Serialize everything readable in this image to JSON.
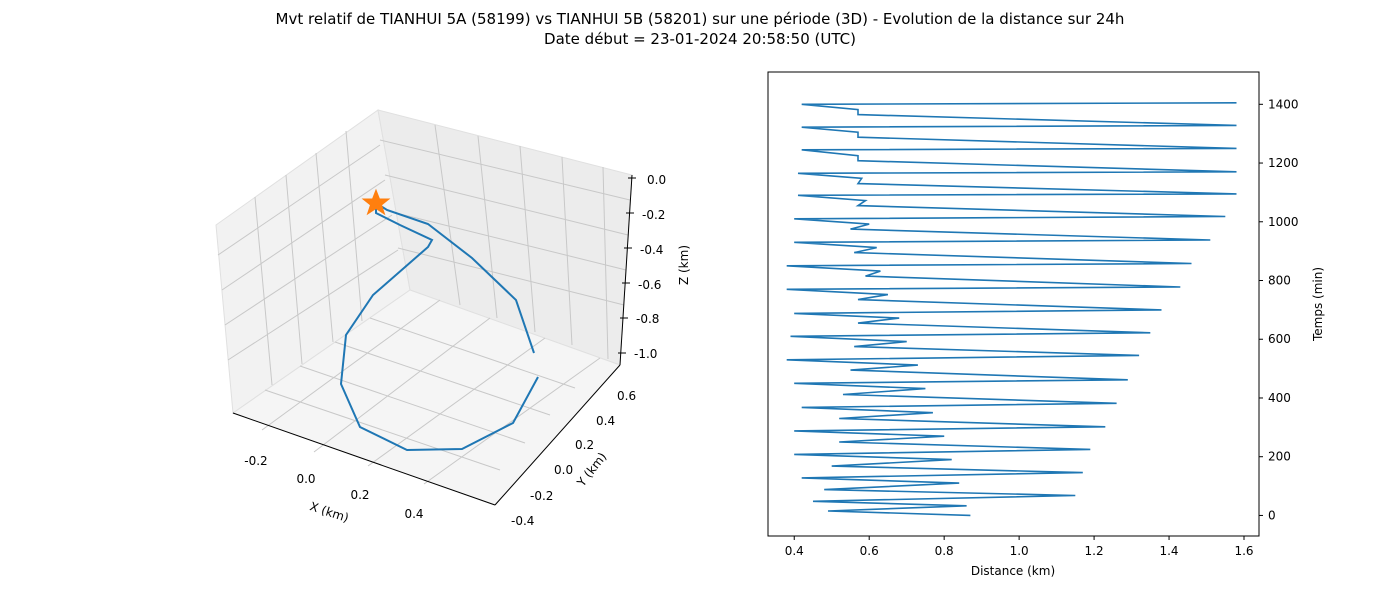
{
  "figure": {
    "title_line1": "Mvt relatif de TIANHUI 5A (58199) vs TIANHUI 5B (58201) sur une période (3D) - Evolution de la distance sur 24h",
    "title_line2": "Date début = 23-01-2024 20:58:50 (UTC)"
  },
  "colors": {
    "line": "#1f77b4",
    "marker": "#ff7f0e",
    "grid": "#b0b0b0",
    "pane": "#f2f2f2"
  },
  "chart_data": [
    {
      "type": "line",
      "subtype": "3d",
      "xlabel": "X (km)",
      "ylabel": "Y (km)",
      "zlabel": "Z (km)",
      "xticks": [
        "-0.2",
        "0.0",
        "0.2",
        "0.4"
      ],
      "yticks": [
        "-0.4",
        "-0.2",
        "0.0",
        "0.2",
        "0.4",
        "0.6"
      ],
      "zticks": [
        "0.0",
        "-0.2",
        "-0.4",
        "-0.6",
        "-0.8",
        "-1.0"
      ],
      "start_marker": "star",
      "grid": true
    },
    {
      "type": "line",
      "xlabel": "Distance (km)",
      "ylabel": "Temps (min)",
      "y_axis_side": "right",
      "xlim": [
        0.33,
        1.64
      ],
      "ylim": [
        -70,
        1510
      ],
      "xticks": [
        "0.4",
        "0.6",
        "0.8",
        "1.0",
        "1.2",
        "1.4",
        "1.6"
      ],
      "yticks": [
        "0",
        "200",
        "400",
        "600",
        "800",
        "1000",
        "1200",
        "1400"
      ],
      "points": [
        [
          0.87,
          0
        ],
        [
          0.49,
          15
        ],
        [
          0.86,
          33
        ],
        [
          0.45,
          48
        ],
        [
          1.15,
          68
        ],
        [
          0.48,
          88
        ],
        [
          0.84,
          110
        ],
        [
          0.42,
          128
        ],
        [
          1.17,
          146
        ],
        [
          0.5,
          168
        ],
        [
          0.82,
          190
        ],
        [
          0.4,
          208
        ],
        [
          1.19,
          225
        ],
        [
          0.52,
          250
        ],
        [
          0.8,
          270
        ],
        [
          0.4,
          288
        ],
        [
          1.23,
          302
        ],
        [
          0.52,
          330
        ],
        [
          0.77,
          350
        ],
        [
          0.42,
          368
        ],
        [
          1.26,
          382
        ],
        [
          0.53,
          412
        ],
        [
          0.75,
          432
        ],
        [
          0.4,
          450
        ],
        [
          1.29,
          462
        ],
        [
          0.55,
          495
        ],
        [
          0.73,
          512
        ],
        [
          0.38,
          530
        ],
        [
          1.32,
          545
        ],
        [
          0.56,
          575
        ],
        [
          0.7,
          592
        ],
        [
          0.39,
          610
        ],
        [
          1.35,
          622
        ],
        [
          0.57,
          655
        ],
        [
          0.68,
          672
        ],
        [
          0.4,
          688
        ],
        [
          1.38,
          700
        ],
        [
          0.57,
          735
        ],
        [
          0.65,
          752
        ],
        [
          0.38,
          770
        ],
        [
          1.43,
          778
        ],
        [
          0.59,
          815
        ],
        [
          0.63,
          832
        ],
        [
          0.38,
          850
        ],
        [
          1.46,
          858
        ],
        [
          0.56,
          895
        ],
        [
          0.62,
          912
        ],
        [
          0.4,
          930
        ],
        [
          1.51,
          938
        ],
        [
          0.55,
          975
        ],
        [
          0.6,
          992
        ],
        [
          0.4,
          1010
        ],
        [
          1.55,
          1018
        ],
        [
          0.57,
          1055
        ],
        [
          0.59,
          1072
        ],
        [
          0.41,
          1090
        ],
        [
          1.58,
          1095
        ],
        [
          0.57,
          1130
        ],
        [
          0.58,
          1148
        ],
        [
          0.41,
          1165
        ],
        [
          1.58,
          1170
        ],
        [
          0.57,
          1208
        ],
        [
          0.57,
          1225
        ],
        [
          0.42,
          1245
        ],
        [
          1.58,
          1250
        ],
        [
          0.57,
          1288
        ],
        [
          0.57,
          1305
        ],
        [
          0.42,
          1322
        ],
        [
          1.58,
          1328
        ],
        [
          0.57,
          1365
        ],
        [
          0.57,
          1382
        ],
        [
          0.42,
          1400
        ],
        [
          1.58,
          1405
        ]
      ]
    }
  ]
}
